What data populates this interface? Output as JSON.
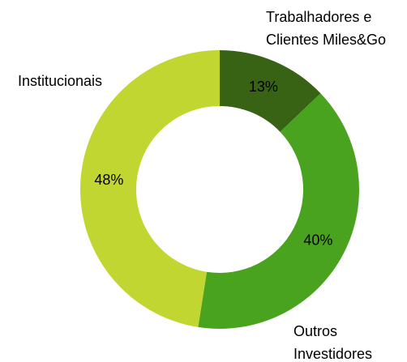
{
  "chart_data": {
    "type": "donut",
    "categories": [
      "Trabalhadores e\nClientes Miles&Go",
      "Outros\nInvestidores",
      "Institucionais"
    ],
    "values": [
      13,
      40,
      48
    ],
    "value_labels": [
      "13%",
      "40%",
      "48%"
    ],
    "colors": [
      "#386214",
      "#4aa31f",
      "#c2d631"
    ]
  }
}
